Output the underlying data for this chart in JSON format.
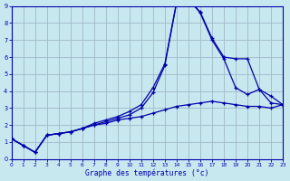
{
  "xlabel": "Graphe des températures (°c)",
  "bg_color": "#c8e8f0",
  "grid_color": "#a0b8c8",
  "line_color": "#0000aa",
  "xlim": [
    0,
    23
  ],
  "ylim": [
    0,
    9
  ],
  "yticks": [
    0,
    1,
    2,
    3,
    4,
    5,
    6,
    7,
    8,
    9
  ],
  "xticks": [
    0,
    1,
    2,
    3,
    4,
    5,
    6,
    7,
    8,
    9,
    10,
    11,
    12,
    13,
    14,
    15,
    16,
    17,
    18,
    19,
    20,
    21,
    22,
    23
  ],
  "series1_y": [
    1.2,
    0.8,
    0.4,
    1.4,
    1.5,
    1.6,
    1.8,
    2.0,
    2.1,
    2.3,
    2.4,
    2.5,
    2.7,
    2.9,
    3.1,
    3.2,
    3.3,
    3.4,
    3.3,
    3.2,
    3.1,
    3.1,
    3.0,
    3.2
  ],
  "series2_y": [
    1.2,
    0.8,
    0.4,
    1.4,
    1.5,
    1.6,
    1.8,
    2.0,
    2.2,
    2.4,
    2.6,
    3.0,
    3.9,
    5.5,
    9.2,
    9.4,
    8.6,
    7.0,
    5.9,
    4.2,
    3.8,
    4.1,
    3.3,
    3.2
  ],
  "series3_y": [
    1.2,
    0.8,
    0.4,
    1.4,
    1.5,
    1.6,
    1.8,
    2.1,
    2.3,
    2.5,
    2.8,
    3.2,
    4.2,
    5.6,
    9.25,
    9.4,
    8.65,
    7.1,
    6.0,
    5.9,
    5.9,
    4.1,
    3.7,
    3.2
  ]
}
